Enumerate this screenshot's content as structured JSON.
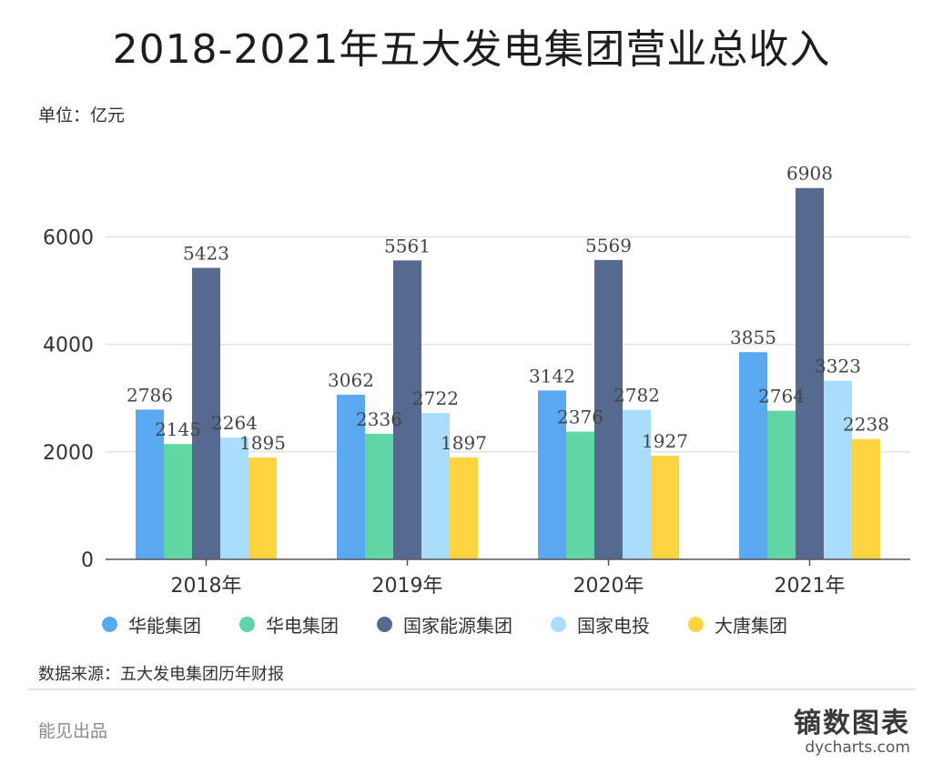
{
  "title": "2018-2021年五大发电集团营业总收入",
  "unit_label": "单位：亿元",
  "source": "数据来源：五大发电集团历年财报",
  "credit": "能见出品",
  "brand": {
    "cn": "镝数图表",
    "en": "dycharts.com"
  },
  "colors": {
    "huaneng": "#5aa9f0",
    "huadian": "#5fd6a4",
    "guojia_nengyuan": "#56698f",
    "guojia_diantou": "#a9ddfb",
    "datang": "#fdd43f"
  },
  "chart_data": {
    "type": "bar",
    "categories": [
      "2018年",
      "2019年",
      "2020年",
      "2021年"
    ],
    "ylim": [
      0,
      7000
    ],
    "yticks": [
      0,
      2000,
      4000,
      6000
    ],
    "grid": true,
    "legend": "bottom",
    "series": [
      {
        "name": "华能集团",
        "color": "#5aa9f0",
        "values": [
          2786,
          3062,
          3142,
          3855
        ]
      },
      {
        "name": "华电集团",
        "color": "#5fd6a4",
        "values": [
          2145,
          2336,
          2376,
          2764
        ]
      },
      {
        "name": "国家能源集团",
        "color": "#56698f",
        "values": [
          5423,
          5561,
          5569,
          6908
        ]
      },
      {
        "name": "国家电投",
        "color": "#a9ddfb",
        "values": [
          2264,
          2722,
          2782,
          3323
        ]
      },
      {
        "name": "大唐集团",
        "color": "#fdd43f",
        "values": [
          1895,
          1897,
          1927,
          2238
        ]
      }
    ]
  }
}
